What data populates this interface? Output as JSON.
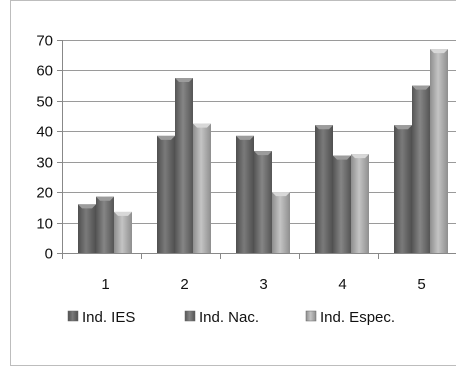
{
  "chart_data": {
    "type": "bar",
    "title": "",
    "xlabel": "",
    "ylabel": "",
    "categories": [
      "1",
      "2",
      "3",
      "4",
      "5"
    ],
    "ylim": [
      0,
      70
    ],
    "yticks": [
      "0",
      "10",
      "20",
      "30",
      "40",
      "50",
      "60",
      "70"
    ],
    "grid": true,
    "legend_position": "bottom",
    "series": [
      {
        "name": "Ind. IES",
        "color": "#6b6b6b",
        "values": [
          16,
          38.5,
          38.5,
          42,
          42
        ]
      },
      {
        "name": "Ind. Nac.",
        "color": "#777777",
        "values": [
          18.5,
          57.5,
          33.5,
          32,
          55
        ]
      },
      {
        "name": "Ind. Espec.",
        "color": "#a9a9a9",
        "values": [
          13.5,
          42.5,
          20,
          32.5,
          67
        ]
      }
    ]
  }
}
